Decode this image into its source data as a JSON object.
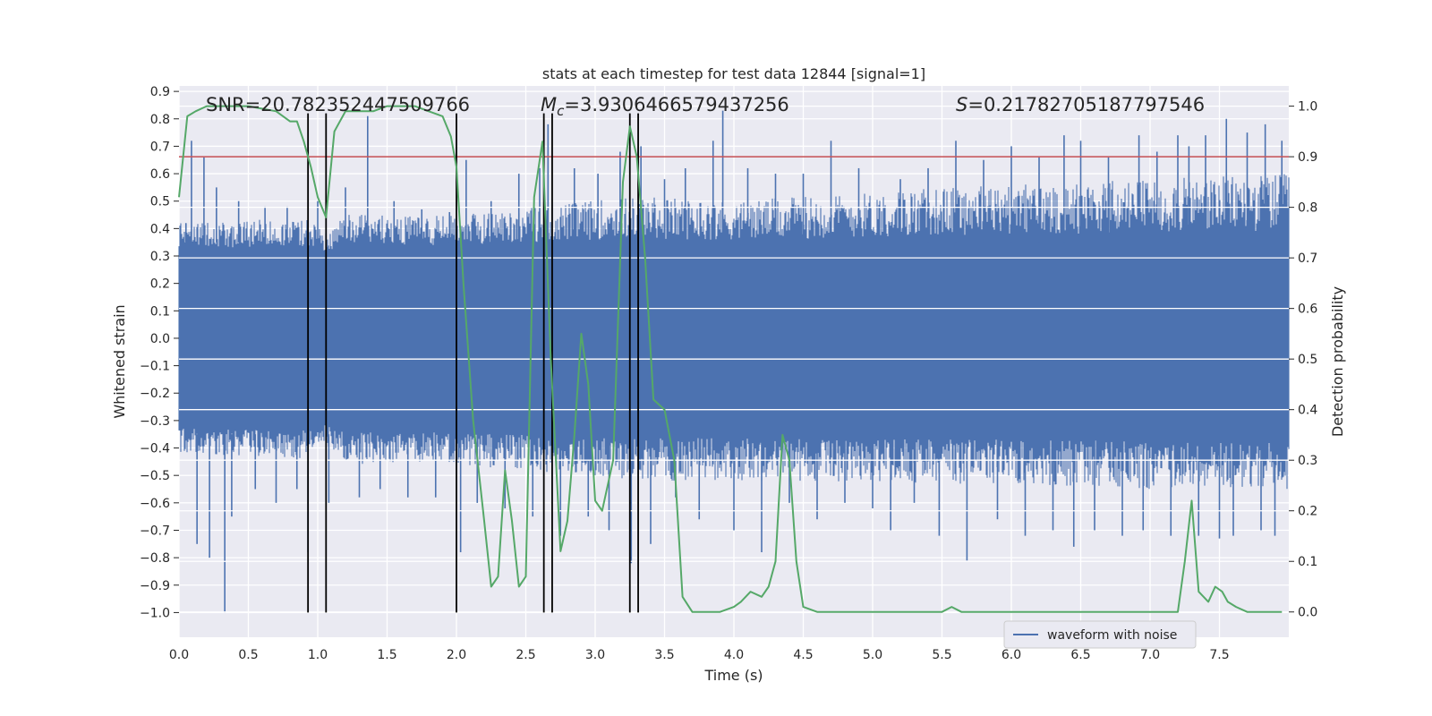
{
  "chart_data": {
    "type": "line",
    "title": "stats at each timestep for test data 12844 [signal=1]",
    "xlabel": "Time (s)",
    "ylabel_left": "Whitened strain",
    "ylabel_right": "Detection probability",
    "xlim": [
      0,
      8
    ],
    "ylim_left": [
      -1.09,
      0.92
    ],
    "ylim_right": [
      -0.05,
      1.04
    ],
    "x_ticks": [
      "0.0",
      "0.5",
      "1.0",
      "1.5",
      "2.0",
      "2.5",
      "3.0",
      "3.5",
      "4.0",
      "4.5",
      "5.0",
      "5.5",
      "6.0",
      "6.5",
      "7.0",
      "7.5"
    ],
    "x_tick_values": [
      0,
      0.5,
      1,
      1.5,
      2,
      2.5,
      3,
      3.5,
      4,
      4.5,
      5,
      5.5,
      6,
      6.5,
      7,
      7.5
    ],
    "y_left_ticks": [
      "0.9",
      "0.8",
      "0.7",
      "0.6",
      "0.5",
      "0.4",
      "0.3",
      "0.2",
      "0.1",
      "0.0",
      "−0.1",
      "−0.2",
      "−0.3",
      "−0.4",
      "−0.5",
      "−0.6",
      "−0.7",
      "−0.8",
      "−0.9",
      "−1.0"
    ],
    "y_left_tick_values": [
      0.9,
      0.8,
      0.7,
      0.6,
      0.5,
      0.4,
      0.3,
      0.2,
      0.1,
      0.0,
      -0.1,
      -0.2,
      -0.3,
      -0.4,
      -0.5,
      -0.6,
      -0.7,
      -0.8,
      -0.9,
      -1.0
    ],
    "y_right_ticks": [
      "1.0",
      "0.9",
      "0.8",
      "0.7",
      "0.6",
      "0.5",
      "0.4",
      "0.3",
      "0.2",
      "0.1",
      "0.0"
    ],
    "y_right_tick_values": [
      1.0,
      0.9,
      0.8,
      0.7,
      0.6,
      0.5,
      0.4,
      0.3,
      0.2,
      0.1,
      0.0
    ],
    "annotations": {
      "snr": "SNR=20.782352447509766",
      "mc_symbol": "M",
      "mc_sub": "c",
      "mc_value": "=3.9306466579437256",
      "s_symbol": "S",
      "s_value": "=0.21782705187797546"
    },
    "legend": {
      "label": "waveform with noise",
      "placement": "lower-right"
    },
    "threshold": {
      "value": 0.9,
      "axis": "right",
      "color": "#c44e52"
    },
    "vertical_lines": [
      0.93,
      1.06,
      2.0,
      2.63,
      2.69,
      3.25,
      3.31
    ],
    "vertical_line_range_left": [
      -1.0,
      0.82
    ],
    "waveform": {
      "name": "waveform with noise",
      "color": "#4c72b0",
      "core_amplitude": 0.28,
      "envelope_x": [
        0.0,
        0.95,
        1.05,
        1.2,
        2.0,
        3.3,
        4.0,
        5.5,
        7.0,
        8.0
      ],
      "envelope_pos": [
        0.42,
        0.44,
        0.38,
        0.45,
        0.45,
        0.52,
        0.5,
        0.55,
        0.58,
        0.6
      ],
      "envelope_neg": [
        -0.42,
        -0.44,
        -0.38,
        -0.46,
        -0.46,
        -0.52,
        -0.52,
        -0.53,
        -0.55,
        -0.55
      ],
      "peaks": [
        [
          0.05,
          0.42
        ],
        [
          0.09,
          0.72
        ],
        [
          0.13,
          -0.75
        ],
        [
          0.18,
          0.66
        ],
        [
          0.22,
          -0.8
        ],
        [
          0.27,
          0.55
        ],
        [
          0.33,
          -1.0
        ],
        [
          0.38,
          -0.65
        ],
        [
          0.43,
          0.5
        ],
        [
          0.55,
          -0.55
        ],
        [
          0.62,
          0.48
        ],
        [
          0.7,
          -0.6
        ],
        [
          0.78,
          0.48
        ],
        [
          0.85,
          -0.55
        ],
        [
          0.93,
          -0.78
        ],
        [
          1.0,
          0.5
        ],
        [
          1.08,
          -0.6
        ],
        [
          1.2,
          0.55
        ],
        [
          1.3,
          -0.58
        ],
        [
          1.36,
          0.81
        ],
        [
          1.45,
          -0.55
        ],
        [
          1.55,
          0.5
        ],
        [
          1.65,
          -0.58
        ],
        [
          1.75,
          0.47
        ],
        [
          1.85,
          -0.58
        ],
        [
          1.95,
          0.46
        ],
        [
          2.03,
          -0.78
        ],
        [
          2.07,
          0.65
        ],
        [
          2.15,
          -0.6
        ],
        [
          2.25,
          0.5
        ],
        [
          2.35,
          -0.62
        ],
        [
          2.45,
          0.6
        ],
        [
          2.55,
          -0.65
        ],
        [
          2.6,
          0.62
        ],
        [
          2.66,
          0.78
        ],
        [
          2.75,
          -0.72
        ],
        [
          2.85,
          0.62
        ],
        [
          2.95,
          -0.65
        ],
        [
          3.02,
          0.6
        ],
        [
          3.1,
          -0.7
        ],
        [
          3.18,
          0.68
        ],
        [
          3.26,
          -0.82
        ],
        [
          3.33,
          0.7
        ],
        [
          3.4,
          -0.75
        ],
        [
          3.5,
          0.58
        ],
        [
          3.58,
          -0.58
        ],
        [
          3.65,
          0.62
        ],
        [
          3.75,
          -0.66
        ],
        [
          3.85,
          0.72
        ],
        [
          3.92,
          0.83
        ],
        [
          4.0,
          -0.7
        ],
        [
          4.1,
          0.62
        ],
        [
          4.2,
          -0.78
        ],
        [
          4.3,
          0.6
        ],
        [
          4.4,
          -0.6
        ],
        [
          4.5,
          0.6
        ],
        [
          4.6,
          -0.66
        ],
        [
          4.7,
          0.72
        ],
        [
          4.8,
          -0.6
        ],
        [
          4.9,
          0.62
        ],
        [
          5.0,
          -0.62
        ],
        [
          5.13,
          -0.7
        ],
        [
          5.2,
          0.58
        ],
        [
          5.3,
          -0.6
        ],
        [
          5.4,
          0.62
        ],
        [
          5.48,
          -0.72
        ],
        [
          5.6,
          0.72
        ],
        [
          5.68,
          -0.81
        ],
        [
          5.8,
          0.65
        ],
        [
          5.9,
          -0.66
        ],
        [
          6.0,
          0.7
        ],
        [
          6.1,
          -0.72
        ],
        [
          6.2,
          0.66
        ],
        [
          6.3,
          -0.7
        ],
        [
          6.38,
          0.74
        ],
        [
          6.45,
          -0.76
        ],
        [
          6.5,
          0.72
        ],
        [
          6.6,
          -0.7
        ],
        [
          6.7,
          0.66
        ],
        [
          6.8,
          -0.72
        ],
        [
          6.92,
          0.74
        ],
        [
          6.95,
          -0.7
        ],
        [
          7.05,
          0.68
        ],
        [
          7.15,
          -0.72
        ],
        [
          7.2,
          0.74
        ],
        [
          7.28,
          0.7
        ],
        [
          7.35,
          -0.72
        ],
        [
          7.4,
          0.74
        ],
        [
          7.5,
          -0.73
        ],
        [
          7.55,
          0.8
        ],
        [
          7.6,
          -0.72
        ],
        [
          7.7,
          0.75
        ],
        [
          7.8,
          -0.7
        ],
        [
          7.83,
          0.78
        ],
        [
          7.9,
          -0.72
        ],
        [
          7.95,
          0.72
        ]
      ]
    },
    "probability": {
      "name": "Detection probability",
      "color": "#55a868",
      "x": [
        0.0,
        0.06,
        0.12,
        0.2,
        0.3,
        0.5,
        0.7,
        0.8,
        0.85,
        0.9,
        0.95,
        1.0,
        1.06,
        1.12,
        1.2,
        1.3,
        1.4,
        1.5,
        1.6,
        1.7,
        1.8,
        1.9,
        1.96,
        2.0,
        2.05,
        2.12,
        2.2,
        2.25,
        2.3,
        2.35,
        2.4,
        2.45,
        2.5,
        2.56,
        2.62,
        2.68,
        2.75,
        2.8,
        2.85,
        2.9,
        2.95,
        3.0,
        3.05,
        3.13,
        3.2,
        3.25,
        3.3,
        3.36,
        3.42,
        3.5,
        3.57,
        3.63,
        3.7,
        3.9,
        4.0,
        4.05,
        4.12,
        4.2,
        4.25,
        4.3,
        4.35,
        4.4,
        4.45,
        4.5,
        4.6,
        4.8,
        5.0,
        5.3,
        5.5,
        5.57,
        5.64,
        5.7,
        5.8,
        5.9,
        6.0,
        6.2,
        6.4,
        6.6,
        7.0,
        7.2,
        7.25,
        7.3,
        7.35,
        7.42,
        7.47,
        7.52,
        7.56,
        7.62,
        7.7,
        7.8,
        7.95
      ],
      "y": [
        0.82,
        0.98,
        0.99,
        1.0,
        1.0,
        1.0,
        0.99,
        0.97,
        0.97,
        0.93,
        0.88,
        0.82,
        0.78,
        0.95,
        0.99,
        0.99,
        0.99,
        1.0,
        1.0,
        1.0,
        0.99,
        0.98,
        0.94,
        0.88,
        0.65,
        0.38,
        0.18,
        0.05,
        0.07,
        0.28,
        0.18,
        0.05,
        0.07,
        0.82,
        0.93,
        0.5,
        0.12,
        0.18,
        0.35,
        0.55,
        0.45,
        0.22,
        0.2,
        0.3,
        0.85,
        0.96,
        0.9,
        0.7,
        0.42,
        0.4,
        0.3,
        0.03,
        0.0,
        0.0,
        0.01,
        0.02,
        0.04,
        0.03,
        0.05,
        0.1,
        0.35,
        0.3,
        0.1,
        0.01,
        0.0,
        0.0,
        0.0,
        0.0,
        0.0,
        0.01,
        0.0,
        0.0,
        0.0,
        0.0,
        0.0,
        0.0,
        0.0,
        0.0,
        0.0,
        0.0,
        0.1,
        0.22,
        0.04,
        0.02,
        0.05,
        0.04,
        0.02,
        0.01,
        0.0,
        0.0,
        0.0
      ]
    }
  }
}
